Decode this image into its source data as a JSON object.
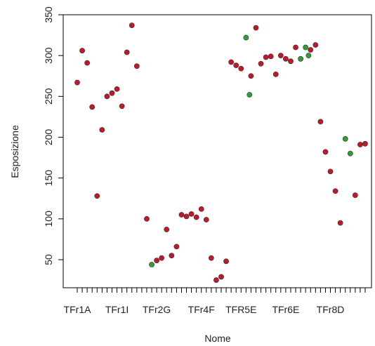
{
  "chart_data": {
    "type": "scatter",
    "title": "",
    "xlabel": "Nome",
    "ylabel": "Esposizione",
    "ylim": [
      20,
      350
    ],
    "yticks": [
      50,
      100,
      150,
      200,
      250,
      300,
      350
    ],
    "x_count": 59,
    "x_tick_labels": [
      {
        "x": 1,
        "label": "TFr1A"
      },
      {
        "x": 9,
        "label": "TFr1I"
      },
      {
        "x": 17,
        "label": "TFr2G"
      },
      {
        "x": 26,
        "label": "TFr4F"
      },
      {
        "x": 34,
        "label": "TFR5E"
      },
      {
        "x": 43,
        "label": "TFr6E"
      },
      {
        "x": 52,
        "label": "TFr8D"
      }
    ],
    "series": [
      {
        "color": "#c0172b",
        "points": [
          [
            1,
            267
          ],
          [
            2,
            306
          ],
          [
            3,
            291
          ],
          [
            4,
            237
          ],
          [
            5,
            128
          ],
          [
            6,
            209
          ],
          [
            7,
            250
          ],
          [
            8,
            254
          ],
          [
            9,
            259
          ],
          [
            10,
            238
          ],
          [
            11,
            304
          ],
          [
            12,
            337
          ],
          [
            13,
            287
          ],
          [
            15,
            100
          ],
          [
            17,
            49
          ],
          [
            18,
            52
          ],
          [
            19,
            87
          ],
          [
            20,
            55
          ],
          [
            21,
            66
          ],
          [
            22,
            105
          ],
          [
            23,
            103
          ],
          [
            24,
            106
          ],
          [
            25,
            102
          ],
          [
            26,
            112
          ],
          [
            27,
            99
          ],
          [
            28,
            52
          ],
          [
            29,
            25
          ],
          [
            30,
            29
          ],
          [
            31,
            48
          ],
          [
            32,
            292
          ],
          [
            33,
            288
          ],
          [
            34,
            284
          ],
          [
            36,
            275
          ],
          [
            37,
            334
          ],
          [
            38,
            290
          ],
          [
            39,
            298
          ],
          [
            40,
            299
          ],
          [
            41,
            277
          ],
          [
            42,
            300
          ],
          [
            43,
            296
          ],
          [
            44,
            293
          ],
          [
            45,
            310
          ],
          [
            48,
            307
          ],
          [
            49,
            313
          ],
          [
            50,
            219
          ],
          [
            51,
            182
          ],
          [
            52,
            158
          ],
          [
            53,
            134
          ],
          [
            54,
            95
          ],
          [
            57,
            129
          ],
          [
            58,
            191
          ],
          [
            59,
            192
          ]
        ]
      },
      {
        "color": "#2e9d3a",
        "points": [
          [
            16,
            44
          ],
          [
            35,
            322
          ],
          [
            35.7,
            252
          ],
          [
            46,
            296
          ],
          [
            47,
            310
          ],
          [
            47.6,
            300
          ],
          [
            55,
            198
          ],
          [
            56,
            180
          ]
        ]
      }
    ],
    "grid": false,
    "legend": "none"
  }
}
